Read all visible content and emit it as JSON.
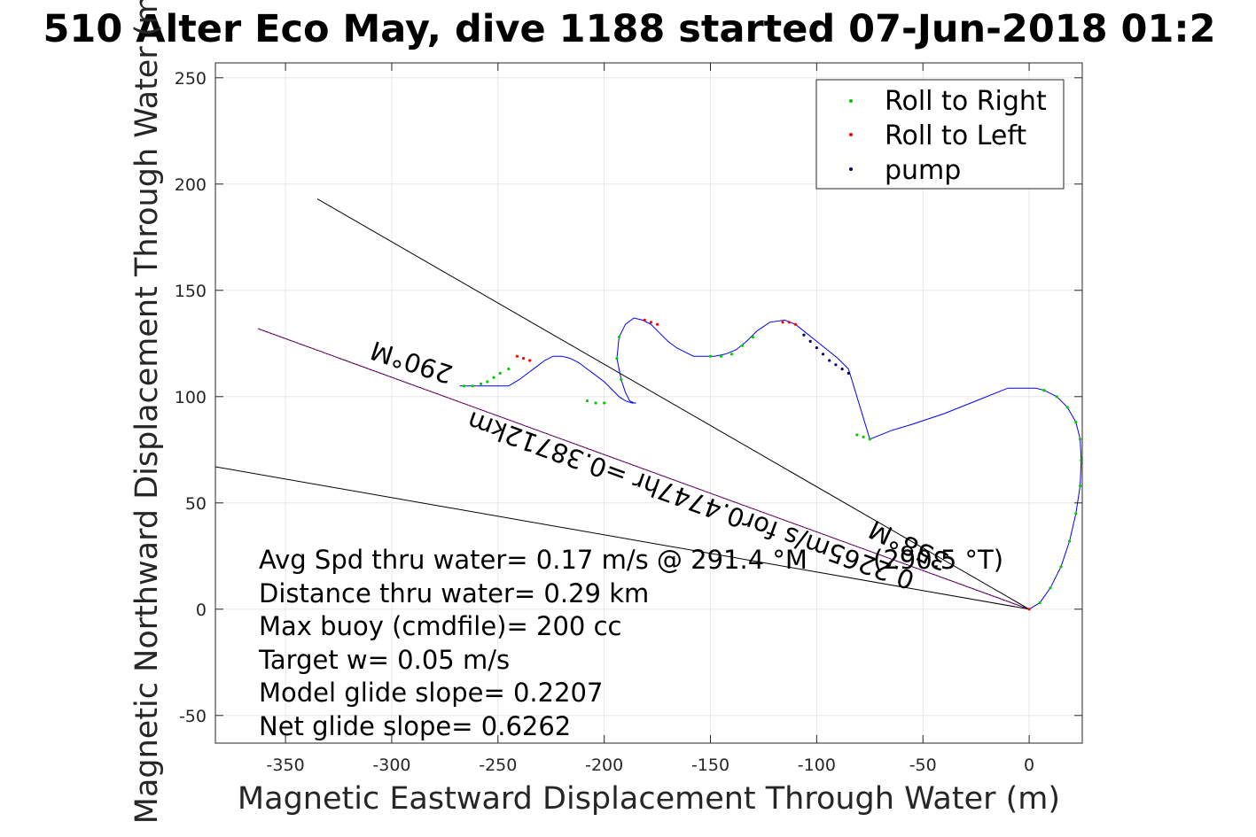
{
  "chart_data": {
    "type": "scatter",
    "title": "510 Alter Eco May, dive 1188 started 07-Jun-2018 01:2",
    "xlabel": "Magnetic Eastward Displacement Through Water (m)",
    "ylabel": "Magnetic Northward Displacement Through Water (m)",
    "xlim": [
      -383,
      25
    ],
    "ylim": [
      -63,
      257
    ],
    "xticks": [
      -350,
      -300,
      -250,
      -200,
      -150,
      -100,
      -50,
      0
    ],
    "yticks": [
      -50,
      0,
      50,
      100,
      150,
      200,
      250
    ],
    "grid": true,
    "legend_position": "top-right",
    "colors": {
      "track": "#0000ff",
      "roll_right": "#00cc00",
      "roll_left": "#ff0000",
      "pump": "#000066",
      "reference_line": "#000000",
      "heading_line": "#cc00cc"
    },
    "series": [
      {
        "type": "line",
        "x": [
          0,
          5,
          10,
          15,
          19,
          22,
          24,
          24.5,
          24,
          22,
          18,
          13,
          7,
          3,
          -10,
          -25,
          -40,
          -55,
          -65,
          -75,
          -85,
          -90,
          -95,
          -100,
          -105,
          -110,
          -115,
          -122,
          -128,
          -133,
          -138,
          -143,
          -148,
          -153,
          -158,
          -162,
          -166,
          -170,
          -174,
          -178,
          -182,
          -186,
          -190,
          -193,
          -194,
          -192,
          -190,
          -188,
          -186,
          -185,
          -187,
          -190,
          -193,
          -196,
          -200,
          -204,
          -208,
          -212,
          -216,
          -220,
          -224,
          -228,
          -232,
          -236,
          -240,
          -245,
          -249,
          -252,
          -255,
          -258,
          -262,
          -266,
          -268
        ],
        "y": [
          0,
          3,
          10,
          20,
          32,
          45,
          58,
          70,
          80,
          88,
          95,
          100,
          103,
          104,
          104,
          98,
          92,
          87,
          84,
          80,
          113,
          118,
          122,
          126,
          130,
          134,
          136,
          135,
          131,
          126,
          122,
          120,
          119,
          119,
          119,
          121,
          123,
          126,
          130,
          134,
          136,
          137,
          134,
          128,
          118,
          108,
          102,
          98,
          97,
          97,
          97,
          98,
          100,
          103,
          107,
          110,
          113,
          116,
          118,
          119,
          119,
          117,
          114,
          111,
          108,
          105,
          105,
          105,
          105,
          105,
          105,
          105,
          105
        ]
      },
      {
        "name": "Roll to Right",
        "x": [
          5,
          10,
          15,
          19,
          22,
          24,
          24.5,
          24,
          22,
          18,
          13,
          7,
          -75,
          -78,
          -81,
          -150,
          -145,
          -140,
          -135,
          -130,
          -193,
          -194,
          -192,
          -200,
          -204,
          -208,
          -245,
          -249,
          -252,
          -255,
          -258,
          -262,
          -266
        ],
        "y": [
          3,
          10,
          20,
          32,
          45,
          58,
          70,
          80,
          88,
          95,
          100,
          103,
          80,
          81,
          82,
          119,
          119,
          120,
          124,
          128,
          128,
          118,
          108,
          97,
          97,
          98,
          113,
          111,
          109,
          107,
          106,
          105,
          105
        ]
      },
      {
        "name": "Roll to Left",
        "x": [
          0,
          -110,
          -113,
          -116,
          -175,
          -178,
          -181,
          -235,
          -238,
          -241
        ],
        "y": [
          0,
          134,
          135,
          135,
          134,
          135,
          136,
          117,
          118,
          119
        ]
      },
      {
        "name": "pump",
        "x": [
          -85,
          -88,
          -91,
          -94,
          -97,
          -100,
          -103,
          -106
        ],
        "y": [
          111,
          113,
          115,
          117,
          120,
          123,
          126,
          129
        ]
      }
    ],
    "reference_lines": [
      {
        "x": [
          0,
          -335
        ],
        "y": [
          0,
          193
        ]
      },
      {
        "x": [
          0,
          -383
        ],
        "y": [
          0,
          67
        ]
      },
      {
        "x": [
          0,
          -363
        ],
        "y": [
          0,
          132
        ]
      }
    ],
    "line_labels": {
      "magnetic_heading": "290°M",
      "distance": "0.2265m/s for0.4747hr =0.38712km",
      "bearing": "358°M",
      "true_heading": "(290.5 °T)"
    },
    "info_lines": [
      "Avg Spd thru water=  0.17 m/s @ 291.4 °M",
      "Distance thru water=  0.29 km",
      "Max buoy (cmdfile)= 200 cc",
      "Target w= 0.05 m/s",
      "Model glide slope= 0.2207",
      "Net glide slope= 0.6262"
    ]
  }
}
